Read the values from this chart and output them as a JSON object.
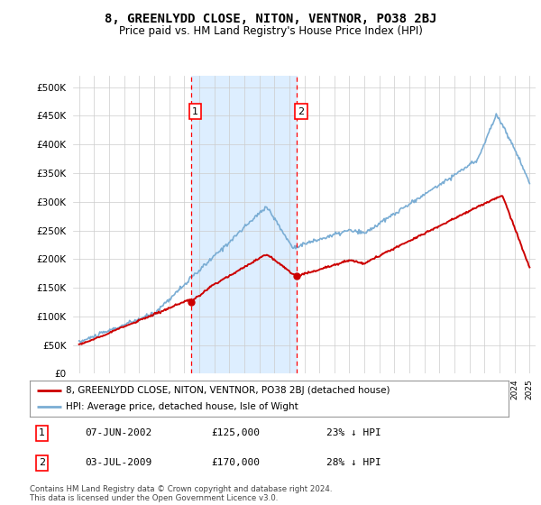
{
  "title": "8, GREENLYDD CLOSE, NITON, VENTNOR, PO38 2BJ",
  "subtitle": "Price paid vs. HM Land Registry's House Price Index (HPI)",
  "hpi_color": "#7aadd4",
  "price_color": "#cc0000",
  "shaded_color": "#ddeeff",
  "transaction1": {
    "date": "07-JUN-2002",
    "price": 125000,
    "label": "1",
    "year": 2002.44
  },
  "transaction2": {
    "date": "03-JUL-2009",
    "price": 170000,
    "label": "2",
    "year": 2009.5
  },
  "legend1": "8, GREENLYDD CLOSE, NITON, VENTNOR, PO38 2BJ (detached house)",
  "legend2": "HPI: Average price, detached house, Isle of Wight",
  "footer": "Contains HM Land Registry data © Crown copyright and database right 2024.\nThis data is licensed under the Open Government Licence v3.0.",
  "ylim": [
    0,
    520000
  ],
  "yticks": [
    0,
    50000,
    100000,
    150000,
    200000,
    250000,
    300000,
    350000,
    400000,
    450000,
    500000
  ],
  "background_color": "#ffffff",
  "table_rows": [
    [
      "1",
      "07-JUN-2002",
      "£125,000",
      "23% ↓ HPI"
    ],
    [
      "2",
      "03-JUL-2009",
      "£170,000",
      "28% ↓ HPI"
    ]
  ]
}
